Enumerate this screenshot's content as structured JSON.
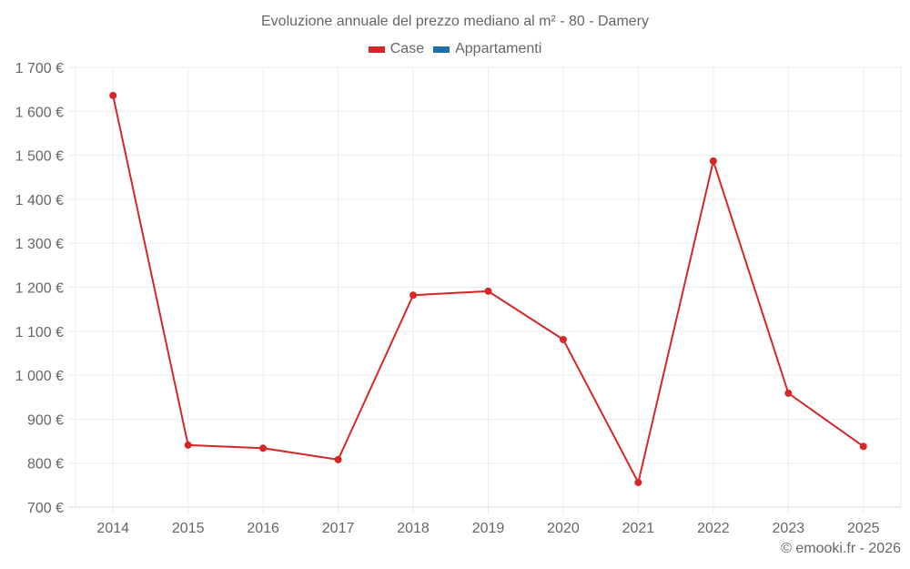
{
  "chart_data": {
    "type": "line",
    "title": "Evoluzione annuale del prezzo mediano al m² - 80 - Damery",
    "xlabel": "",
    "ylabel": "",
    "categories": [
      "2014",
      "2015",
      "2016",
      "2017",
      "2018",
      "2019",
      "2020",
      "2021",
      "2022",
      "2023",
      "2025"
    ],
    "series": [
      {
        "name": "Case",
        "color": "#d62728",
        "values": [
          1636,
          841,
          834,
          808,
          1182,
          1191,
          1081,
          756,
          1487,
          959,
          838
        ]
      },
      {
        "name": "Appartamenti",
        "color": "#1f6fa8",
        "values": []
      }
    ],
    "ylim": [
      700,
      1700
    ],
    "yticks": [
      700,
      800,
      900,
      1000,
      1100,
      1200,
      1300,
      1400,
      1500,
      1600,
      1700
    ],
    "ytick_labels": [
      "700 €",
      "800 €",
      "900 €",
      "1 000 €",
      "1 100 €",
      "1 200 €",
      "1 300 €",
      "1 400 €",
      "1 500 €",
      "1 600 €",
      "1 700 €"
    ],
    "grid": true,
    "legend_position": "top"
  },
  "title": "Evoluzione annuale del prezzo mediano al m² - 80 - Damery",
  "legend": [
    {
      "label": "Case",
      "color": "#d62728"
    },
    {
      "label": "Appartamenti",
      "color": "#1f6fa8"
    }
  ],
  "credit": "© emooki.fr - 2026"
}
